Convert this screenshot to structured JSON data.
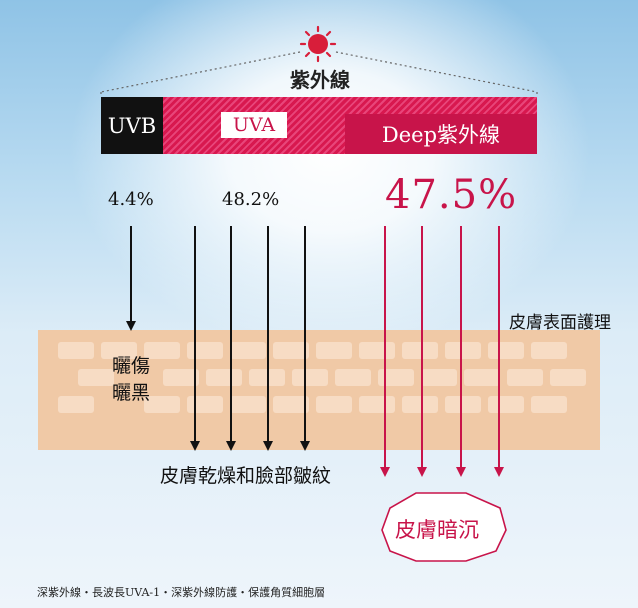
{
  "title": "紫外線",
  "bands": {
    "uvb": "UVB",
    "uva": "UVA",
    "deep": "Deep紫外線"
  },
  "percentages": {
    "uvb": "4.4%",
    "uva": "48.2%",
    "deep": "47.5%"
  },
  "labels": {
    "sunburn_line1": "曬傷",
    "sunburn_line2": "曬黑",
    "skin_surface": "皮膚表面護理",
    "wrinkles": "皮膚乾燥和臉部皺紋",
    "dullness": "皮膚暗沉"
  },
  "footer": "深紫外線・長波長UVA-1・深紫外線防護・保護角質細胞層",
  "colors": {
    "accent": "#c8144a",
    "uvb": "#111111",
    "skin": "#f0c9a6"
  },
  "icons": [
    "sun-icon"
  ]
}
